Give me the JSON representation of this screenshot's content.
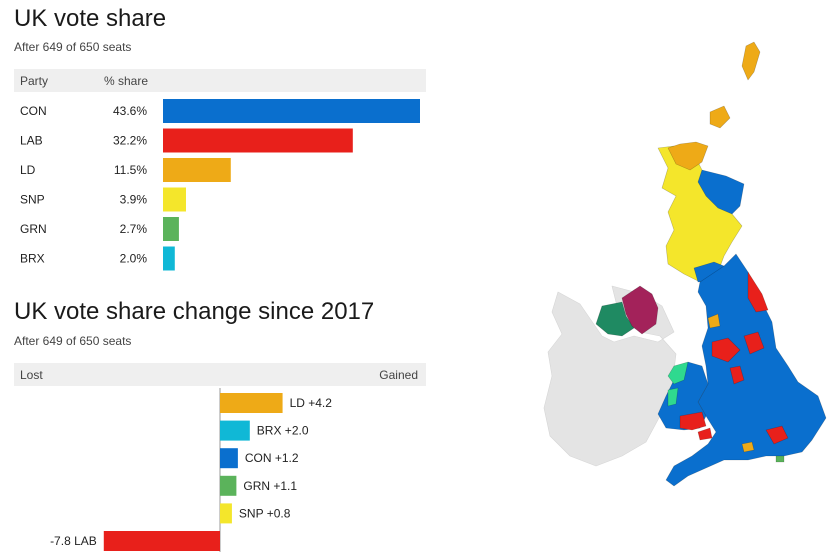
{
  "share_panel": {
    "title": "UK vote share",
    "subtitle": "After 649 of 650 seats",
    "col_party": "Party",
    "col_share": "% share"
  },
  "change_panel": {
    "title": "UK vote share change since 2017",
    "subtitle": "After 649 of 650 seats",
    "col_lost": "Lost",
    "col_gained": "Gained"
  },
  "colors": {
    "CON": "#0a6fce",
    "LAB": "#e8201b",
    "LD": "#eeaa17",
    "SNP": "#f4e62b",
    "GRN": "#5bb35b",
    "BRX": "#10b8d6",
    "PC": "#2fd98f",
    "NI_DUP": "#a3225a",
    "NI_SF": "#1f8a62",
    "ireland": "#e4e4e4"
  },
  "chart_data": [
    {
      "type": "bar",
      "orientation": "horizontal",
      "title": "UK vote share",
      "subtitle": "After 649 of 650 seats",
      "categories": [
        "CON",
        "LAB",
        "LD",
        "SNP",
        "GRN",
        "BRX"
      ],
      "values": [
        43.6,
        32.2,
        11.5,
        3.9,
        2.7,
        2.0
      ],
      "labels": [
        "43.6%",
        "32.2%",
        "11.5%",
        "3.9%",
        "2.7%",
        "2.0%"
      ],
      "xlim": [
        0,
        43.6
      ]
    },
    {
      "type": "bar",
      "orientation": "horizontal",
      "title": "UK vote share change since 2017",
      "subtitle": "After 649 of 650 seats",
      "categories": [
        "LD",
        "BRX",
        "CON",
        "GRN",
        "SNP",
        "LAB"
      ],
      "values": [
        4.2,
        2.0,
        1.2,
        1.1,
        0.8,
        -7.8
      ],
      "labels": [
        "+4.2",
        "+2.0",
        "+1.2",
        "+1.1",
        "+0.8",
        "-7.8"
      ],
      "xlim": [
        -7.8,
        4.2
      ]
    }
  ]
}
